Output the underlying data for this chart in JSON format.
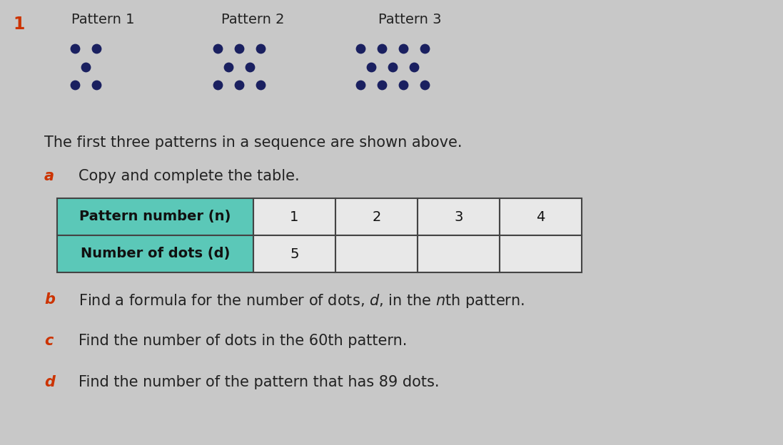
{
  "background_color": "#c8c8c8",
  "question_number": "1",
  "question_number_color": "#cc3300",
  "pattern_labels": [
    "Pattern 1",
    "Pattern 2",
    "Pattern 3"
  ],
  "pattern_label_color": "#222222",
  "dot_color": "#1a2060",
  "intro_text": "The first three patterns in a sequence are shown above.",
  "intro_color": "#222222",
  "label_a": "a",
  "text_a": "Copy and complete the table.",
  "label_b": "b",
  "text_b": "Find a formula for the number of dots, $d$, in the $n$th pattern.",
  "label_c": "c",
  "text_c": "Find the number of dots in the 60th pattern.",
  "label_d": "d",
  "text_d": "Find the number of the pattern that has 89 dots.",
  "abcd_color": "#cc3300",
  "table_header_bg": "#5bc8b8",
  "table_header_text_color": "#111111",
  "table_row1_label": "Pattern number (n)",
  "table_row2_label": "Number of dots (d)",
  "table_values_row1": [
    "1",
    "2",
    "3",
    "4"
  ],
  "table_values_row2": [
    "5",
    "",
    "",
    ""
  ],
  "table_border_color": "#444444",
  "font_size_num": 17,
  "font_size_labels": 14,
  "font_size_text": 15,
  "font_size_table": 14,
  "font_size_abcd": 15
}
